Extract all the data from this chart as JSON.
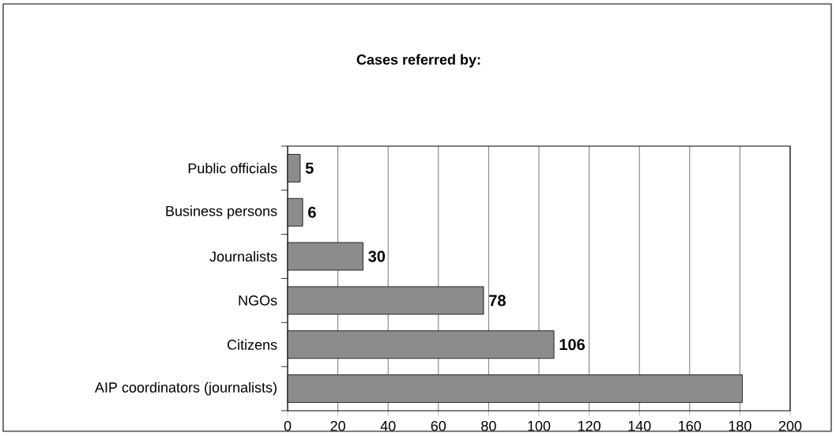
{
  "chart_data": {
    "type": "bar",
    "orientation": "horizontal",
    "title": "Cases referred by:",
    "categories": [
      "Public officials",
      "Business persons",
      "Journalists",
      "NGOs",
      "Citizens",
      "AIP coordinators (journalists)"
    ],
    "values": [
      5,
      6,
      30,
      78,
      106,
      181
    ],
    "value_labels": [
      "5",
      "6",
      "30",
      "78",
      "106",
      null
    ],
    "color": "#8c8c8c",
    "xlim": [
      0,
      200
    ],
    "xticks": [
      0,
      20,
      40,
      60,
      80,
      100,
      120,
      140,
      160,
      180,
      200
    ],
    "grid": "x"
  }
}
